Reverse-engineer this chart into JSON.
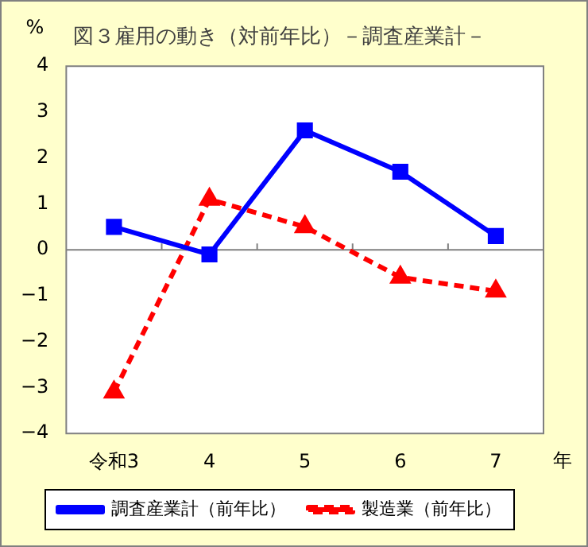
{
  "chart_data": {
    "type": "line",
    "title": "図３雇用の動き（対前年比）－調査産業計－",
    "ylabel": "%",
    "xlabel": "年",
    "categories": [
      "令和3",
      "4",
      "5",
      "6",
      "7"
    ],
    "series": [
      {
        "name": "調査産業計（前年比）",
        "color": "#0000ff",
        "marker": "square",
        "line_style": "solid",
        "values": [
          0.5,
          -0.1,
          2.6,
          1.7,
          0.3
        ]
      },
      {
        "name": "製造業（前年比）",
        "color": "#ff0000",
        "marker": "triangle",
        "line_style": "dashed",
        "values": [
          -3.1,
          1.1,
          0.5,
          -0.6,
          -0.9
        ]
      }
    ],
    "ylim": [
      -4,
      4
    ],
    "yticks": [
      -4,
      -3,
      -2,
      -1,
      0,
      1,
      2,
      3,
      4
    ],
    "legend": "bottom"
  }
}
